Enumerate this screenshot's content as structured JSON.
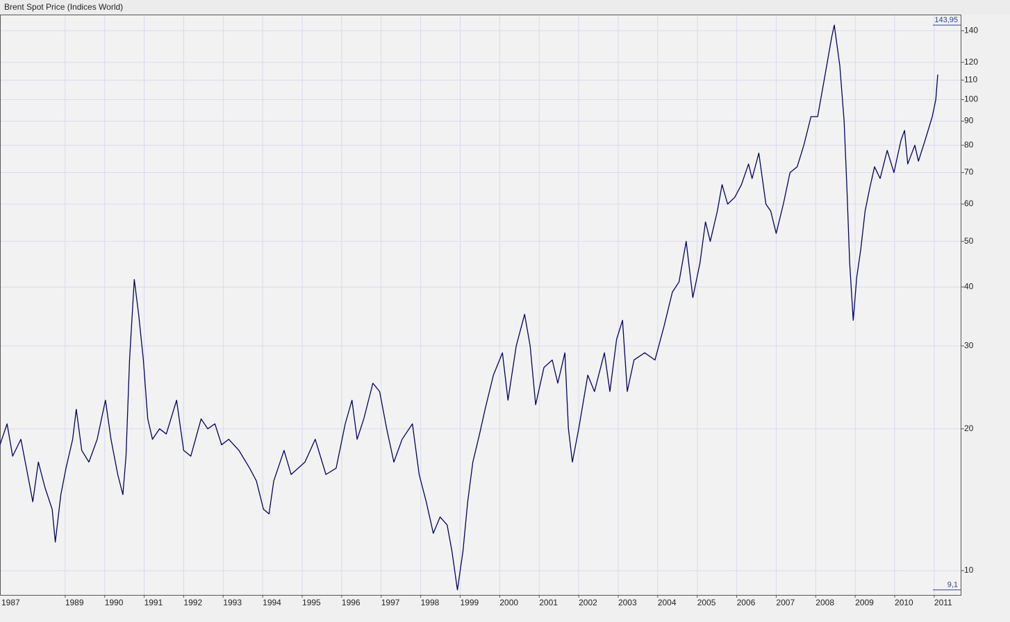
{
  "chart_data": {
    "type": "line",
    "title": "Brent Spot Price (Indices World)",
    "log_scale": true,
    "grid": true,
    "color": "#000066",
    "x": [
      1987.35,
      1987.53,
      1987.67,
      1987.88,
      1988.05,
      1988.18,
      1988.32,
      1988.49,
      1988.67,
      1988.75,
      1988.89,
      1989.02,
      1989.19,
      1989.28,
      1989.42,
      1989.6,
      1989.81,
      1990.02,
      1990.16,
      1990.33,
      1990.46,
      1990.54,
      1990.63,
      1990.75,
      1990.86,
      1990.98,
      1991.09,
      1991.21,
      1991.39,
      1991.56,
      1991.82,
      1992.0,
      1992.18,
      1992.44,
      1992.61,
      1992.79,
      1992.96,
      1993.14,
      1993.4,
      1993.67,
      1993.84,
      1994.02,
      1994.16,
      1994.28,
      1994.54,
      1994.72,
      1995.07,
      1995.33,
      1995.6,
      1995.86,
      1996.09,
      1996.26,
      1996.39,
      1996.56,
      1996.79,
      1996.96,
      1997.14,
      1997.32,
      1997.53,
      1997.79,
      1997.96,
      1998.14,
      1998.32,
      1998.49,
      1998.67,
      1998.79,
      1998.93,
      1999.07,
      1999.19,
      1999.32,
      1999.49,
      1999.63,
      1999.84,
      2000.07,
      2000.21,
      2000.42,
      2000.63,
      2000.77,
      2000.91,
      2001.12,
      2001.33,
      2001.47,
      2001.65,
      2001.74,
      2001.84,
      2002.0,
      2002.23,
      2002.4,
      2002.65,
      2002.79,
      2002.96,
      2003.11,
      2003.23,
      2003.4,
      2003.67,
      2003.93,
      2004.16,
      2004.37,
      2004.54,
      2004.72,
      2004.89,
      2005.07,
      2005.21,
      2005.33,
      2005.51,
      2005.63,
      2005.77,
      2005.95,
      2006.12,
      2006.3,
      2006.39,
      2006.56,
      2006.74,
      2006.86,
      2007.0,
      2007.18,
      2007.35,
      2007.53,
      2007.7,
      2007.88,
      2008.05,
      2008.23,
      2008.4,
      2008.47,
      2008.61,
      2008.72,
      2008.79,
      2008.86,
      2008.95,
      2009.04,
      2009.14,
      2009.25,
      2009.37,
      2009.49,
      2009.63,
      2009.81,
      2009.98,
      2010.16,
      2010.25,
      2010.33,
      2010.51,
      2010.6,
      2010.77,
      2010.95,
      2011.04,
      2011.09
    ],
    "values": [
      18.5,
      20.5,
      17.5,
      19,
      16,
      14,
      17,
      15,
      13.5,
      11.5,
      14.5,
      16.5,
      19,
      22,
      18,
      17,
      19,
      23,
      19,
      16,
      14.5,
      17.5,
      28,
      41.5,
      35,
      28,
      21,
      19,
      20,
      19.5,
      23,
      18,
      17.5,
      21,
      20,
      20.5,
      18.5,
      19,
      18,
      16.5,
      15.5,
      13.5,
      13.2,
      15.5,
      18,
      16,
      17,
      19,
      16,
      16.5,
      20.5,
      23,
      19,
      21,
      25,
      24,
      20,
      17,
      19,
      20.5,
      16,
      14,
      12,
      13,
      12.5,
      11,
      9.1,
      11,
      14,
      17,
      19.5,
      22,
      26,
      29,
      23,
      30,
      35,
      30,
      22.5,
      27,
      28,
      25,
      29,
      20,
      17,
      20,
      26,
      24,
      29,
      24,
      31,
      34,
      24,
      28,
      29,
      28,
      33,
      39,
      41,
      50,
      38,
      45,
      55,
      50,
      58,
      66,
      60,
      62,
      66,
      73,
      68,
      77,
      60,
      58,
      52,
      60,
      70,
      72,
      80,
      92,
      92,
      112,
      135,
      143.95,
      118,
      90,
      65,
      45,
      34,
      42,
      48,
      58,
      65,
      72,
      68,
      78,
      70,
      82,
      86,
      73,
      80,
      74,
      82,
      92,
      100,
      113
    ],
    "xlim": [
      1987.35,
      2011.67
    ],
    "xticks": [
      1987,
      1989,
      1990,
      1991,
      1992,
      1993,
      1994,
      1995,
      1996,
      1997,
      1998,
      1999,
      2000,
      2001,
      2002,
      2003,
      2004,
      2005,
      2006,
      2007,
      2008,
      2009,
      2010,
      2011
    ],
    "ylim": [
      8.88,
      151
    ],
    "yticks": [
      10,
      20,
      30,
      40,
      50,
      60,
      70,
      80,
      90,
      100,
      110,
      120,
      140
    ],
    "max_label": {
      "value": 143.95,
      "label": "143,95"
    },
    "min_label": {
      "value": 9.1,
      "label": "9,1"
    }
  }
}
